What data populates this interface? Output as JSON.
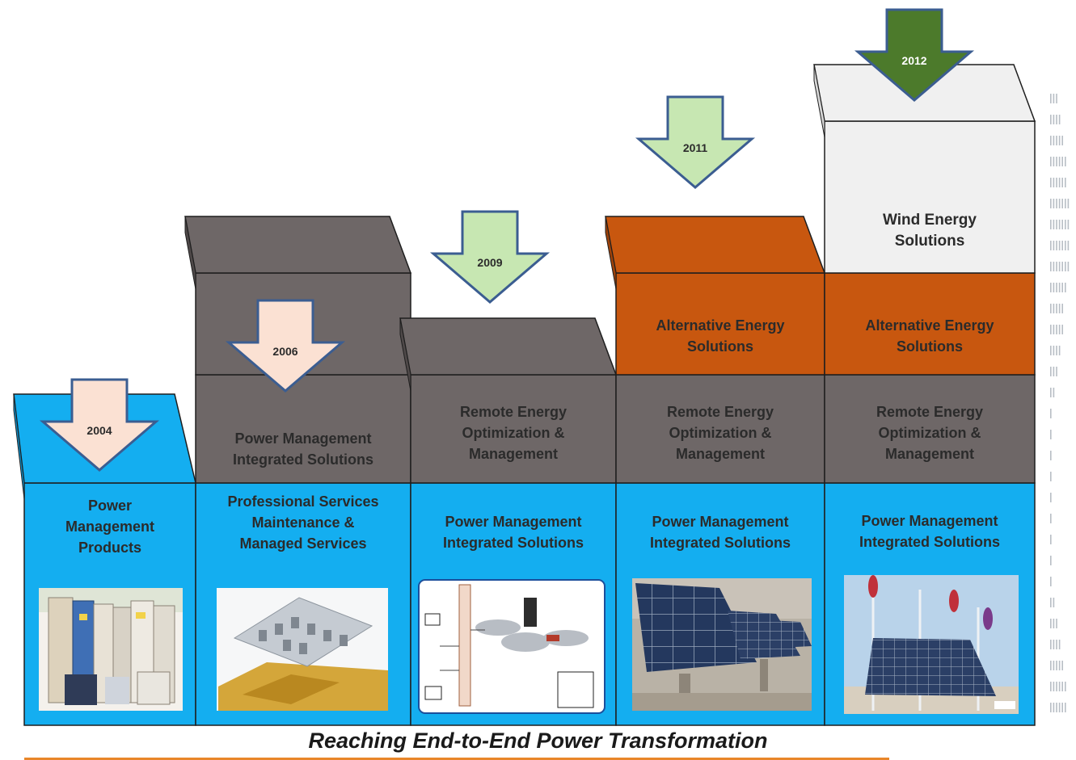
{
  "caption": "Reaching End-to-End Power Transformation",
  "colors": {
    "blue": "#14aef0",
    "gray": "#6e6767",
    "orange": "#c8570f",
    "light": "#f0f0f0",
    "arrow_peach": "#fbe1d3",
    "arrow_green_light": "#c7e7b2",
    "arrow_green_dark": "#4c7a2b",
    "arrow_border": "#3b5d91",
    "caption_rule": "#e8862a"
  },
  "arrows": [
    {
      "year": "2004",
      "color": "peach"
    },
    {
      "year": "2006",
      "color": "peach"
    },
    {
      "year": "2009",
      "color": "green_light"
    },
    {
      "year": "2011",
      "color": "green_light"
    },
    {
      "year": "2012",
      "color": "green_dark"
    }
  ],
  "columns": [
    {
      "year": "2004",
      "layers": [
        {
          "color": "blue",
          "label": [
            "Power",
            "Management",
            "Products"
          ]
        }
      ],
      "image": "power-cabinets-photo"
    },
    {
      "year": "2006",
      "layers": [
        {
          "color": "blue",
          "label": []
        },
        {
          "color": "gray",
          "label": [
            "Professional Services",
            "Maintenance &",
            "Managed Services"
          ]
        },
        {
          "color": "gray",
          "label": [
            "Power Management",
            "Integrated Solutions"
          ]
        }
      ],
      "image": "data-center-layout-illustration"
    },
    {
      "year": "2009",
      "layers": [
        {
          "color": "blue",
          "label": [
            "Power Management",
            "Integrated Solutions"
          ]
        },
        {
          "color": "gray",
          "label": [
            "Remote Energy",
            "Optimization &",
            "Management"
          ]
        }
      ],
      "image": "network-architecture-diagram"
    },
    {
      "year": "2011",
      "layers": [
        {
          "color": "blue",
          "label": [
            "Power Management",
            "Integrated Solutions"
          ]
        },
        {
          "color": "gray",
          "label": [
            "Remote Energy",
            "Optimization &",
            "Management"
          ]
        },
        {
          "color": "orange",
          "label": [
            "Alternative Energy",
            "Solutions"
          ]
        }
      ],
      "image": "solar-panels-photo"
    },
    {
      "year": "2012",
      "layers": [
        {
          "color": "blue",
          "label": [
            "Power Management",
            "Integrated Solutions"
          ]
        },
        {
          "color": "gray",
          "label": [
            "Remote Energy",
            "Optimization &",
            "Management"
          ]
        },
        {
          "color": "orange",
          "label": [
            "Alternative Energy",
            "Solutions"
          ]
        },
        {
          "color": "light",
          "label": [
            "Wind Energy",
            "Solutions"
          ]
        }
      ],
      "image": "wind-solar-installation-photo"
    }
  ]
}
